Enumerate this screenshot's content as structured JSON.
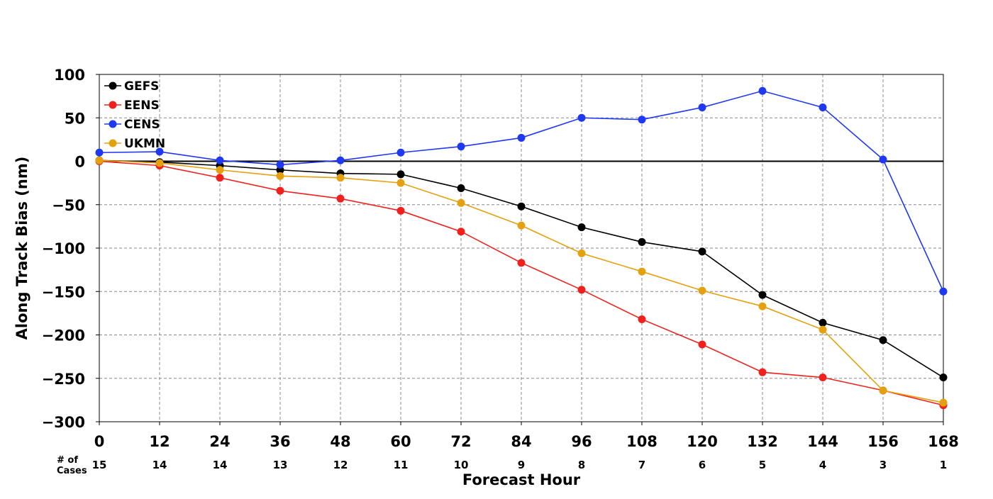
{
  "chart_data": {
    "type": "line",
    "xlabel": "Forecast Hour",
    "ylabel": "Along Track Bias (nm)",
    "x": [
      0,
      12,
      24,
      36,
      48,
      60,
      72,
      84,
      96,
      108,
      120,
      132,
      144,
      156,
      168
    ],
    "xlim": [
      0,
      168
    ],
    "ylim": [
      -300,
      100
    ],
    "yticks": [
      100,
      50,
      0,
      -50,
      -100,
      -150,
      -200,
      -250,
      -300
    ],
    "ytick_labels": [
      "100",
      "50",
      "0",
      "−50",
      "−100",
      "−150",
      "−200",
      "−250",
      "−300"
    ],
    "xtick_labels": [
      "0",
      "12",
      "24",
      "36",
      "48",
      "60",
      "72",
      "84",
      "96",
      "108",
      "120",
      "132",
      "144",
      "156",
      "168"
    ],
    "grid": true,
    "legend_position": "top-left",
    "cases_label": [
      "# of",
      "Cases"
    ],
    "cases": [
      15,
      14,
      14,
      13,
      12,
      11,
      10,
      9,
      8,
      7,
      6,
      5,
      4,
      3,
      1
    ],
    "series": [
      {
        "name": "GEFS",
        "color": "#000000",
        "values": [
          1,
          -1,
          -5,
          -10,
          -14,
          -15,
          -31,
          -52,
          -76,
          -93,
          -104,
          -154,
          -186,
          -206,
          -249
        ]
      },
      {
        "name": "EENS",
        "color": "#f0211d",
        "values": [
          0,
          -5,
          -19,
          -34,
          -43,
          -57,
          -81,
          -117,
          -148,
          -182,
          -211,
          -243,
          -249,
          -264,
          -281
        ]
      },
      {
        "name": "CENS",
        "color": "#1f38f4",
        "values": [
          10,
          11,
          1,
          -4,
          1,
          10,
          17,
          27,
          50,
          48,
          62,
          81,
          62,
          2,
          -150
        ]
      },
      {
        "name": "UKMN",
        "color": "#e5a00d",
        "values": [
          1,
          -2,
          -10,
          -17,
          -19,
          -25,
          -48,
          -74,
          -106,
          -127,
          -149,
          -167,
          -194,
          -264,
          -278
        ]
      }
    ]
  }
}
